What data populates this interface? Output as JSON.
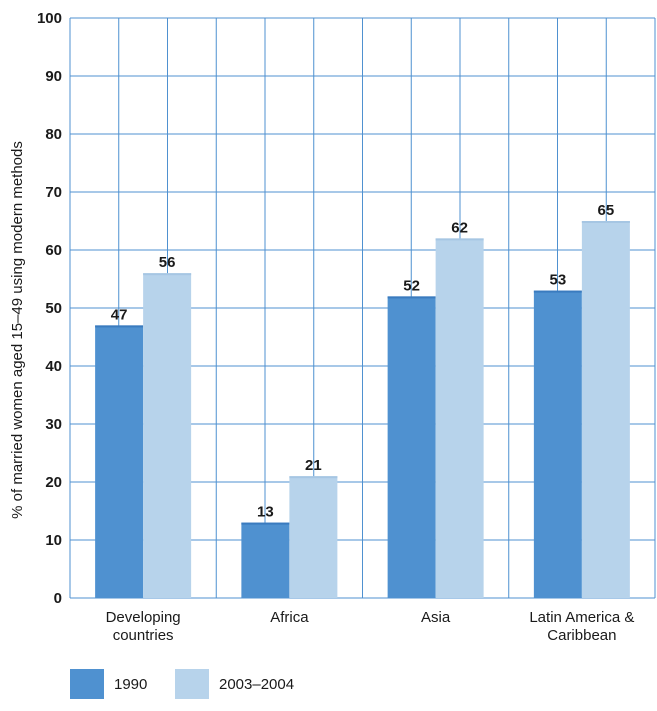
{
  "chart_data": {
    "type": "bar",
    "title": "",
    "xlabel": "",
    "ylabel": "% of married women aged 15–49 using modern methods",
    "ylim": [
      0,
      100
    ],
    "yticks": [
      0,
      10,
      20,
      30,
      40,
      50,
      60,
      70,
      80,
      90,
      100
    ],
    "grid": true,
    "legend_position": "bottom-left",
    "categories": [
      [
        "Developing",
        "countries"
      ],
      [
        "Africa"
      ],
      [
        "Asia"
      ],
      [
        "Latin America &",
        "Caribbean"
      ]
    ],
    "series": [
      {
        "name": "1990",
        "color": "#4f91d0",
        "values": [
          47,
          13,
          52,
          53
        ]
      },
      {
        "name": "2003–2004",
        "color": "#b7d3eb",
        "values": [
          56,
          21,
          62,
          65
        ]
      }
    ],
    "grid_color": "#4f91d0"
  }
}
